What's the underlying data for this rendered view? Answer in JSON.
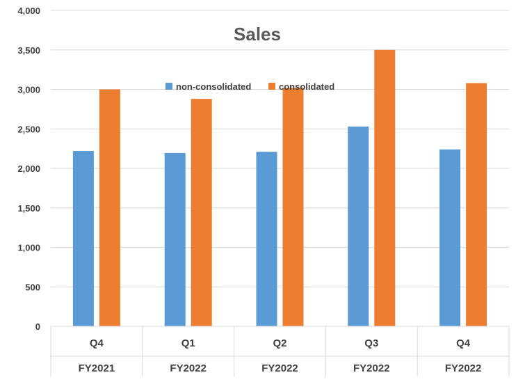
{
  "chart_data": {
    "type": "bar",
    "title": "Sales",
    "xlabel": "",
    "ylabel": "",
    "ylim": [
      0,
      4000
    ],
    "yticks": [
      0,
      500,
      1000,
      1500,
      2000,
      2500,
      3000,
      3500,
      4000
    ],
    "ytick_labels": [
      "0",
      "500",
      "1,000",
      "1,500",
      "2,000",
      "2,500",
      "3,000",
      "3,500",
      "4,000"
    ],
    "categories": [
      {
        "quarter": "Q4",
        "year": "FY2021"
      },
      {
        "quarter": "Q1",
        "year": "FY2022"
      },
      {
        "quarter": "Q2",
        "year": "FY2022"
      },
      {
        "quarter": "Q3",
        "year": "FY2022"
      },
      {
        "quarter": "Q4",
        "year": "FY2022"
      }
    ],
    "series": [
      {
        "name": "non-consolidated",
        "color": "#5B9BD5",
        "values": [
          2220,
          2195,
          2210,
          2530,
          2240
        ]
      },
      {
        "name": "consolidated",
        "color": "#ED7D31",
        "values": [
          3000,
          2880,
          3020,
          3500,
          3080
        ]
      }
    ],
    "grid": true,
    "legend_position": "top-center"
  }
}
